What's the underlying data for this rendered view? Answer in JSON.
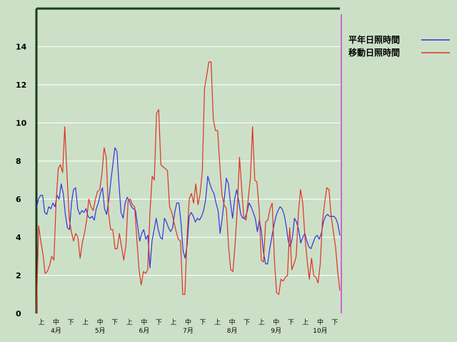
{
  "chart_data": {
    "type": "line",
    "ylim": [
      0,
      16
    ],
    "y_ticks": [
      "0",
      "2",
      "4",
      "6",
      "8",
      "10",
      "12",
      "14"
    ],
    "grid": "horizontal",
    "legend_position": "top-right",
    "dekad_labels": [
      "上",
      "中",
      "下",
      "上",
      "中",
      "下",
      "上",
      "中",
      "下",
      "上",
      "中",
      "下",
      "上",
      "中",
      "下",
      "上",
      "中",
      "下",
      "上",
      "中",
      "下"
    ],
    "month_labels": [
      "4月",
      "5月",
      "6月",
      "7月",
      "8月",
      "9月",
      "10月"
    ],
    "series": [
      {
        "name": "平年日照時間",
        "color": "#3333dd",
        "values": [
          5.5,
          6.0,
          6.2,
          6.2,
          5.3,
          5.2,
          5.6,
          5.5,
          5.8,
          5.6,
          6.2,
          6.0,
          6.8,
          6.3,
          5.2,
          4.5,
          4.4,
          5.8,
          6.5,
          6.6,
          5.5,
          5.2,
          5.4,
          5.3,
          5.5,
          5.1,
          5.0,
          5.1,
          4.9,
          5.5,
          5.8,
          6.3,
          6.6,
          5.5,
          5.2,
          5.9,
          6.9,
          7.8,
          8.7,
          8.5,
          6.8,
          5.3,
          5.0,
          5.8,
          6.1,
          5.9,
          5.6,
          5.5,
          5.4,
          4.6,
          3.8,
          4.2,
          4.4,
          3.9,
          4.1,
          2.4,
          3.8,
          4.4,
          5.0,
          4.4,
          4.0,
          3.9,
          5.0,
          4.8,
          4.5,
          4.3,
          4.5,
          5.3,
          5.8,
          5.8,
          4.8,
          3.3,
          2.9,
          3.6,
          5.1,
          5.3,
          5.1,
          4.8,
          5.0,
          4.9,
          5.1,
          5.4,
          6.0,
          7.2,
          6.8,
          6.5,
          6.3,
          5.8,
          5.4,
          4.2,
          5.0,
          6.0,
          7.1,
          6.8,
          5.8,
          5.0,
          6.0,
          6.5,
          5.9,
          5.2,
          5.0,
          5.0,
          5.3,
          5.8,
          5.6,
          5.3,
          5.0,
          4.3,
          4.9,
          4.3,
          3.2,
          2.6,
          2.6,
          3.4,
          4.0,
          4.6,
          5.1,
          5.4,
          5.6,
          5.5,
          5.2,
          4.6,
          3.8,
          3.5,
          4.0,
          5.0,
          4.8,
          4.4,
          3.7,
          4.0,
          4.2,
          3.8,
          3.5,
          3.4,
          3.7,
          4.0,
          4.1,
          3.9,
          4.2,
          4.8,
          5.1,
          5.2,
          5.1,
          5.1,
          5.1,
          5.0,
          4.7,
          4.1
        ]
      },
      {
        "name": "移動日照時間",
        "color": "#dd3322",
        "values": [
          0.0,
          4.6,
          3.8,
          3.1,
          2.1,
          2.2,
          2.5,
          3.0,
          2.8,
          5.8,
          7.6,
          7.8,
          7.4,
          9.8,
          7.3,
          5.0,
          4.3,
          3.8,
          4.2,
          4.0,
          2.9,
          3.7,
          4.2,
          4.9,
          6.0,
          5.6,
          5.4,
          6.0,
          6.4,
          6.5,
          7.3,
          8.7,
          8.2,
          5.3,
          4.4,
          4.4,
          3.4,
          3.4,
          4.2,
          3.5,
          2.8,
          3.6,
          5.9,
          6.0,
          5.7,
          5.6,
          3.9,
          2.3,
          1.5,
          2.2,
          2.1,
          2.3,
          5.3,
          7.2,
          7.0,
          10.5,
          10.7,
          7.8,
          7.7,
          7.6,
          7.5,
          5.6,
          5.3,
          4.8,
          4.3,
          3.9,
          3.8,
          1.0,
          1.0,
          4.0,
          6.0,
          6.3,
          5.8,
          6.8,
          5.7,
          6.3,
          7.5,
          11.8,
          12.5,
          13.2,
          13.2,
          10.2,
          9.6,
          9.6,
          7.8,
          6.2,
          5.7,
          5.5,
          3.5,
          2.3,
          2.2,
          3.6,
          5.5,
          8.2,
          6.6,
          5.0,
          4.9,
          6.0,
          7.1,
          9.8,
          7.0,
          6.9,
          5.5,
          2.8,
          2.7,
          4.8,
          4.9,
          5.5,
          5.8,
          2.8,
          1.1,
          1.0,
          1.8,
          1.7,
          1.9,
          2.0,
          4.5,
          2.3,
          2.6,
          3.0,
          5.3,
          6.5,
          5.8,
          4.0,
          2.8,
          1.8,
          2.9,
          2.0,
          1.9,
          1.6,
          2.6,
          4.8,
          5.8,
          6.6,
          6.5,
          5.1,
          4.3,
          3.5,
          2.2,
          1.2
        ]
      }
    ]
  }
}
